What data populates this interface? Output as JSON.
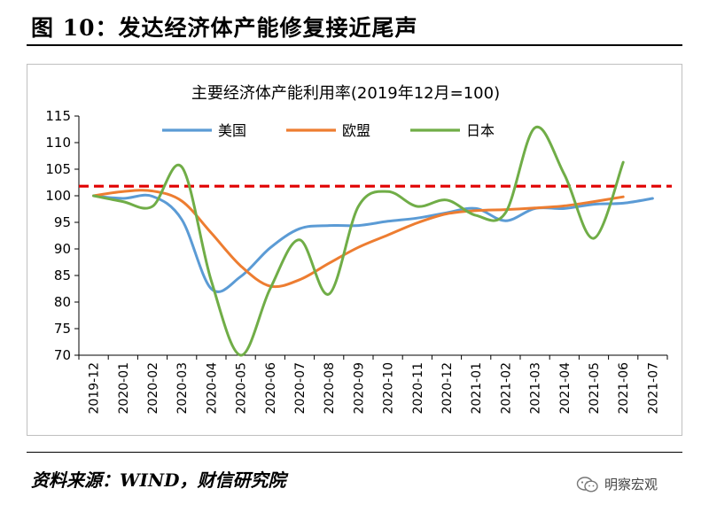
{
  "figure": {
    "title": "图 10：发达经济体产能修复接近尾声",
    "source": "资料来源：WIND，财信研究院",
    "watermark": "明察宏观"
  },
  "colors": {
    "us": "#5b9bd5",
    "eu": "#ed7d31",
    "jp": "#70ad47",
    "ref": "#e00000",
    "axis": "#000000",
    "text": "#000000"
  },
  "chart_data": {
    "type": "line",
    "title": "主要经济体产能利用率(2019年12月=100)",
    "xlabel": "",
    "ylabel": "",
    "ylim": [
      70,
      115
    ],
    "yticks": [
      70,
      75,
      80,
      85,
      90,
      95,
      100,
      105,
      110,
      115
    ],
    "grid": false,
    "legend_position": "top",
    "categories": [
      "2019-12",
      "2020-01",
      "2020-02",
      "2020-03",
      "2020-04",
      "2020-05",
      "2020-06",
      "2020-07",
      "2020-08",
      "2020-09",
      "2020-10",
      "2020-11",
      "2020-12",
      "2021-01",
      "2021-02",
      "2021-03",
      "2021-04",
      "2021-05",
      "2021-06",
      "2021-07"
    ],
    "series": [
      {
        "name": "美国",
        "color_key": "us",
        "values": [
          100,
          99.5,
          99.9,
          95.5,
          82.5,
          84.8,
          90.2,
          93.8,
          94.4,
          94.4,
          95.2,
          95.8,
          96.8,
          97.6,
          95.3,
          97.6,
          97.6,
          98.4,
          98.6,
          99.5
        ]
      },
      {
        "name": "欧盟",
        "color_key": "eu",
        "values": [
          100,
          100.8,
          100.9,
          99.0,
          93.0,
          86.8,
          83.0,
          84.2,
          87.3,
          90.3,
          92.6,
          94.9,
          96.6,
          97.2,
          97.4,
          97.7,
          98.1,
          98.9,
          99.8,
          null
        ]
      },
      {
        "name": "日本",
        "color_key": "jp",
        "values": [
          100,
          98.9,
          98.0,
          105.4,
          84.0,
          70.0,
          82.5,
          91.7,
          81.5,
          98.0,
          100.8,
          98.0,
          99.2,
          96.3,
          96.8,
          112.8,
          104.0,
          92.0,
          106.3,
          null
        ]
      }
    ],
    "reference_line": {
      "value": 101.8,
      "style": "dashed",
      "color_key": "ref"
    }
  }
}
